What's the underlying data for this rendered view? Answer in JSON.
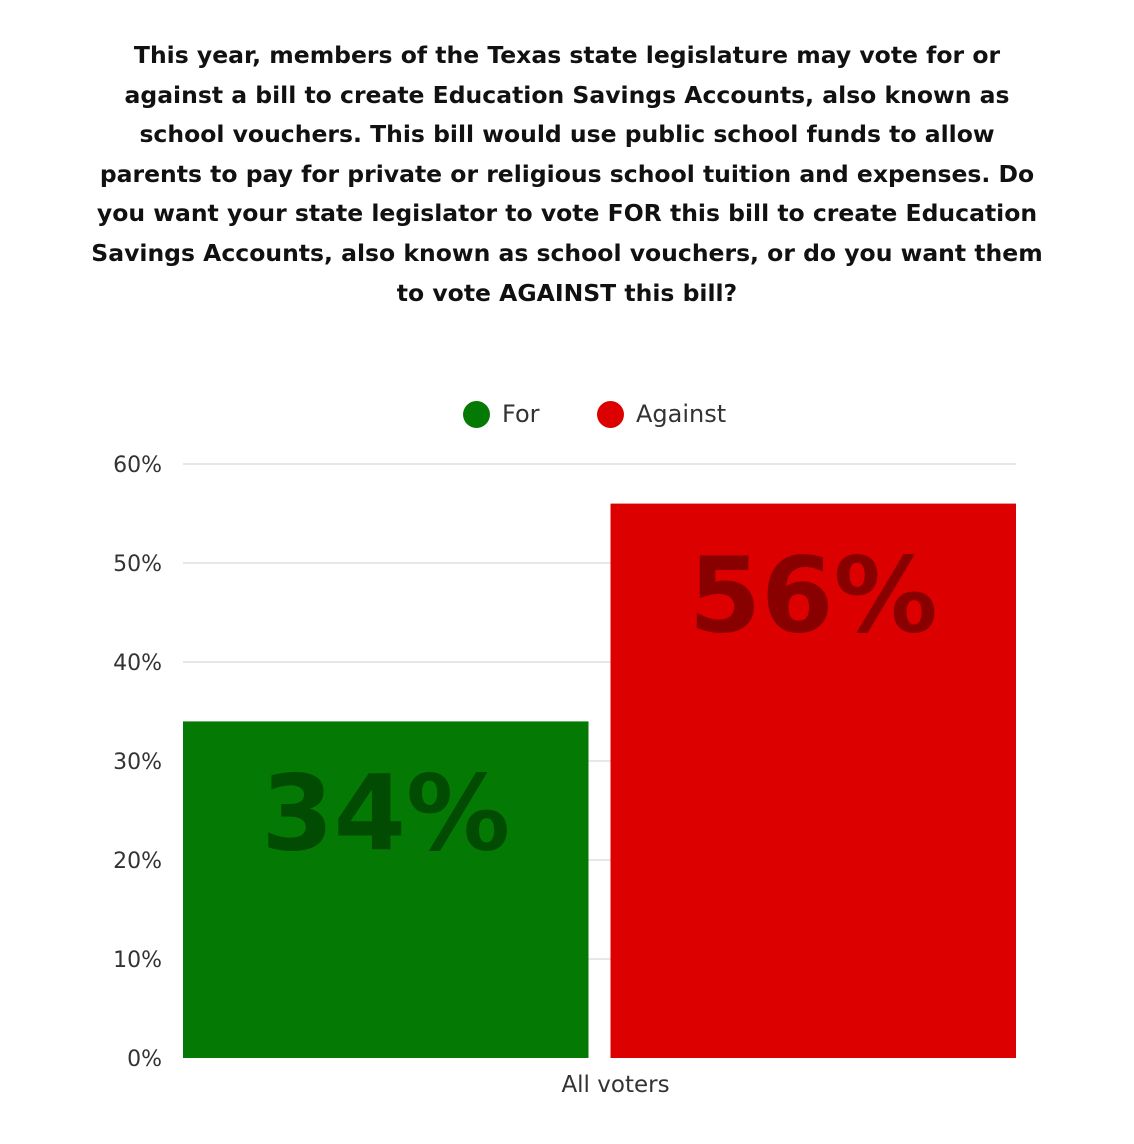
{
  "question": "This year, members of the Texas state legislature may vote for or against a bill to create Education Savings Accounts, also known as school vouchers. This bill would use public school funds to allow parents to pay for private or religious school tuition and expenses. Do you want your state legislator to vote FOR this bill to create Education Savings Accounts, also known as school vouchers, or do you want them to vote AGAINST this bill?",
  "chart_data": {
    "type": "bar",
    "title": "This year, members of the Texas state legislature may vote for or against a bill to create Education Savings Accounts, also known as school vouchers. This bill would use public school funds to allow parents to pay for private or religious school tuition and expenses. Do you want your state legislator to vote FOR this bill to create Education Savings Accounts, also known as school vouchers, or do you want them to vote AGAINST this bill?",
    "categories": [
      "All voters"
    ],
    "series": [
      {
        "name": "For",
        "values": [
          34
        ],
        "color": "#047a04",
        "data_label": "34%"
      },
      {
        "name": "Against",
        "values": [
          56
        ],
        "color": "#dc0000",
        "data_label": "56%"
      }
    ],
    "ylim": [
      0,
      60
    ],
    "y_ticks": [
      "0%",
      "10%",
      "20%",
      "30%",
      "40%",
      "50%",
      "60%"
    ],
    "grid": true,
    "legend": "top-center",
    "xlabel": "",
    "ylabel": ""
  }
}
